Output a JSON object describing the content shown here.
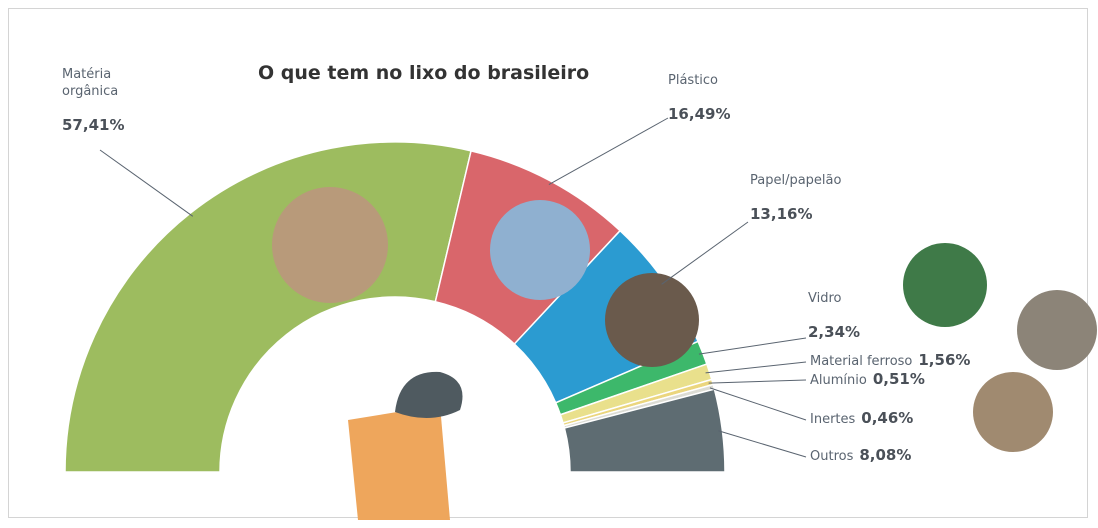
{
  "chart_data": {
    "type": "half-donut",
    "title": "O que tem no lixo do brasileiro",
    "categories": [
      "Matéria orgânica",
      "Plástico",
      "Papel/papelão",
      "Vidro",
      "Material ferroso",
      "Alumínio",
      "Inertes",
      "Outros"
    ],
    "values": [
      57.41,
      16.49,
      13.16,
      2.34,
      1.56,
      0.51,
      0.46,
      8.08
    ],
    "value_labels": [
      "57,41%",
      "16,49%",
      "13,16%",
      "2,34%",
      "1,56%",
      "0,51%",
      "0,46%",
      "8,08%"
    ],
    "colors": [
      "#9dbc5f",
      "#d9666b",
      "#2b9bd1",
      "#3db86b",
      "#e9e08c",
      "#ebd67e",
      "#dcdcd4",
      "#5e6c72"
    ]
  }
}
